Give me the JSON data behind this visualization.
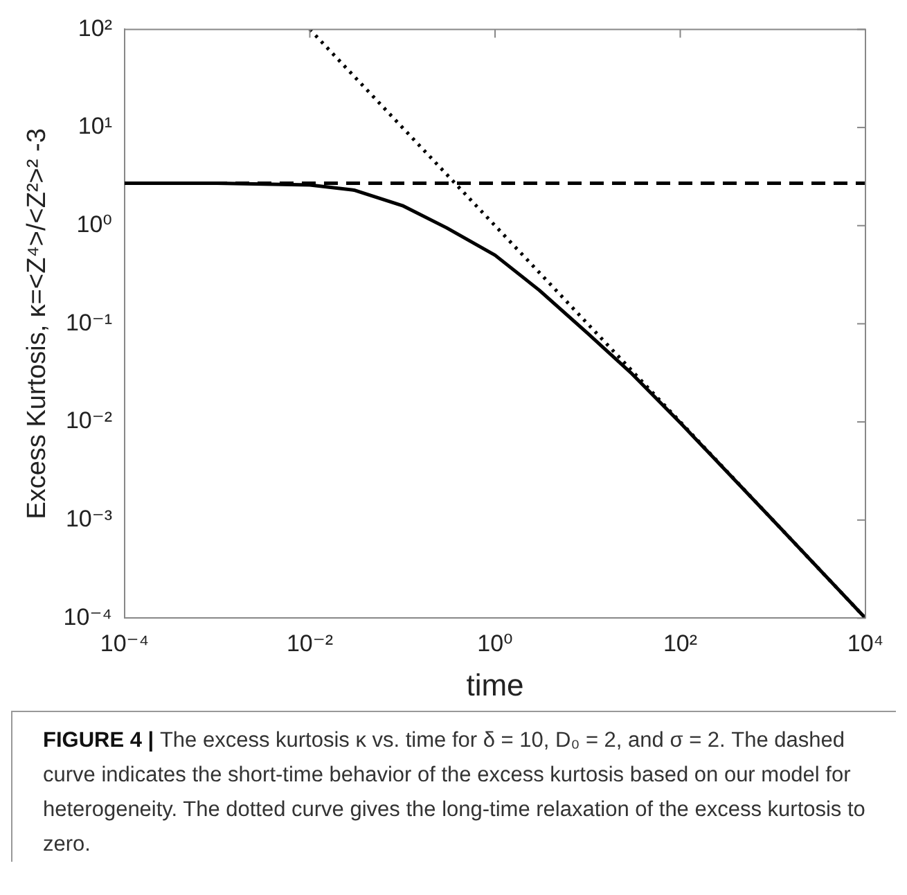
{
  "chart_data": {
    "type": "line",
    "xlabel": "time",
    "ylabel": "Excess Kurtosis, κ=<Z⁴>/<Z²>² -3",
    "log": "xy",
    "grid": false,
    "legend": false,
    "marker": "none",
    "xlim": [
      0.0001,
      10000
    ],
    "ylim": [
      0.0001,
      100
    ],
    "xticks": [
      {
        "value": 0.0001,
        "label": "10⁻⁴"
      },
      {
        "value": 0.01,
        "label": "10⁻²"
      },
      {
        "value": 1,
        "label": "10⁰"
      },
      {
        "value": 100,
        "label": "10²"
      },
      {
        "value": 10000,
        "label": "10⁴"
      }
    ],
    "yticks": [
      {
        "value": 0.0001,
        "label": "10⁻⁴"
      },
      {
        "value": 0.001,
        "label": "10⁻³"
      },
      {
        "value": 0.01,
        "label": "10⁻²"
      },
      {
        "value": 0.1,
        "label": "10⁻¹"
      },
      {
        "value": 1,
        "label": "10⁰"
      },
      {
        "value": 10,
        "label": "10¹"
      },
      {
        "value": 100,
        "label": "10²"
      }
    ],
    "series": [
      {
        "color": "#000000",
        "line_style": "solid",
        "x": [
          0.0001,
          0.001,
          0.01,
          0.03,
          0.1,
          0.3,
          1,
          3,
          10,
          30,
          100,
          1000,
          10000
        ],
        "values": [
          2.7,
          2.7,
          2.6,
          2.3,
          1.6,
          0.95,
          0.5,
          0.22,
          0.08,
          0.031,
          0.0098,
          0.001,
          0.0001
        ]
      },
      {
        "color": "#000000",
        "line_style": "dashed",
        "x": [
          0.0001,
          10000
        ],
        "values": [
          2.7,
          2.7
        ]
      },
      {
        "color": "#000000",
        "line_style": "dotted",
        "x": [
          0.01,
          10000
        ],
        "values": [
          100,
          0.0001
        ]
      }
    ],
    "annotations": [
      "FIGURE 4 |",
      "The excess kurtosis κ vs. time for δ = 10, D₀ = 2, and σ = 2. The dashed curve indicates the short-time behavior of the excess kurtosis based on our model for heterogeneity. The dotted curve gives the long-time relaxation of the excess kurtosis to zero."
    ]
  }
}
